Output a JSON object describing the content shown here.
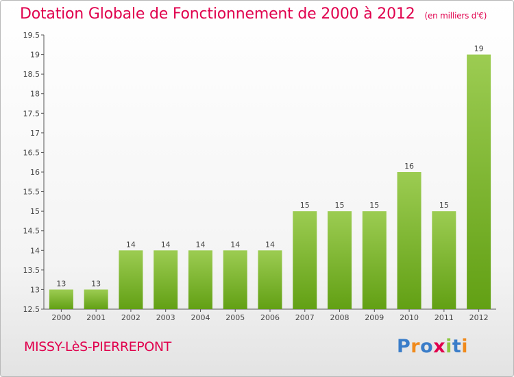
{
  "chart_data": {
    "type": "bar",
    "title": "Dotation Globale de Fonctionnement de 2000 à 2012",
    "subtitle": "(en milliers d'€)",
    "categories": [
      "2000",
      "2001",
      "2002",
      "2003",
      "2004",
      "2005",
      "2006",
      "2007",
      "2008",
      "2009",
      "2010",
      "2011",
      "2012"
    ],
    "values": [
      13,
      13,
      14,
      14,
      14,
      14,
      14,
      15,
      15,
      15,
      16,
      15,
      19
    ],
    "value_labels": [
      "13",
      "13",
      "14",
      "14",
      "14",
      "14",
      "14",
      "15",
      "15",
      "15",
      "16",
      "15",
      "19"
    ],
    "bar_base": 12.5,
    "ylim": [
      12.5,
      19.5
    ],
    "yticks": [
      12.5,
      13,
      13.5,
      14,
      14.5,
      15,
      15.5,
      16,
      16.5,
      17,
      17.5,
      18,
      18.5,
      19,
      19.5
    ],
    "ytick_labels": [
      "12.5",
      "13",
      "13.5",
      "14",
      "14.5",
      "15",
      "15.5",
      "16",
      "16.5",
      "17",
      "17.5",
      "18",
      "18.5",
      "19",
      "19.5"
    ],
    "grid": false,
    "colors": {
      "bar_light": "#9ccc52",
      "bar_dark": "#62a014",
      "accent": "#e0004d"
    }
  },
  "commune": "MISSY-LèS-PIERREPONT",
  "logo": {
    "letters": [
      "P",
      "r",
      "o",
      "x",
      "i",
      "t",
      "i"
    ],
    "colors": [
      "#3a7dc9",
      "#f08a1c",
      "#3a7dc9",
      "#e0004d",
      "#8cc63f",
      "#3a7dc9",
      "#f08a1c"
    ]
  }
}
